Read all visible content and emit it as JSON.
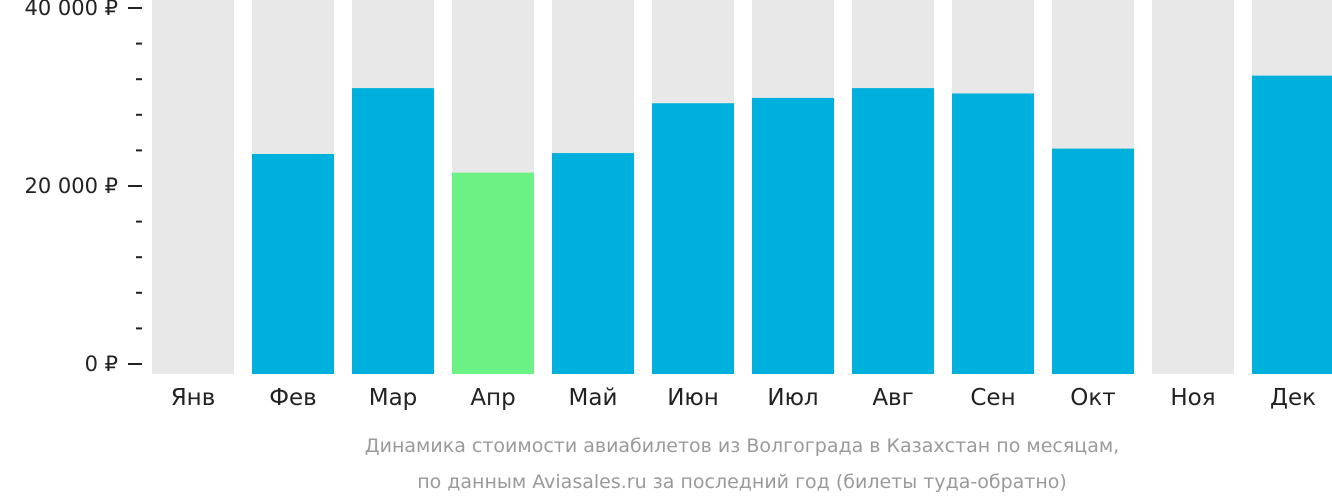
{
  "chart_data": {
    "type": "bar",
    "categories": [
      "Янв",
      "Фев",
      "Мар",
      "Апр",
      "Май",
      "Июн",
      "Июл",
      "Авг",
      "Сен",
      "Окт",
      "Ноя",
      "Дек"
    ],
    "values": [
      null,
      23600,
      31000,
      21500,
      23700,
      29300,
      29900,
      31000,
      30400,
      24200,
      null,
      32400
    ],
    "highlight_index": 3,
    "ylim": [
      0,
      40000
    ],
    "yticks": [
      {
        "value": 0,
        "label": "0 ₽"
      },
      {
        "value": 20000,
        "label": "20 000 ₽"
      },
      {
        "value": 40000,
        "label": "40 000 ₽"
      }
    ],
    "minor_tick_step": 4000,
    "title": "",
    "xlabel": "",
    "ylabel": "",
    "grid": false,
    "legend": "none",
    "caption_lines": [
      "Динамика стоимости авиабилетов из Волгограда в Казахстан по месяцам,",
      "по данным Aviasales.ru за последний год (билеты туда-обратно)"
    ]
  },
  "colors": {
    "bar": "#00b0dc",
    "highlight": "#6cf184",
    "background_column": "#e8e8e8",
    "axis": "#222222",
    "caption": "#9a9a9a"
  }
}
